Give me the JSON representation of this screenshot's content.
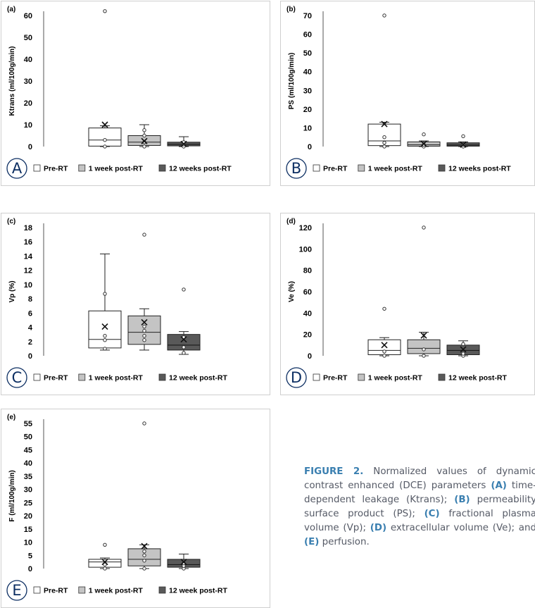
{
  "colors": {
    "pre": "#ffffff",
    "post1": "#c4c4c4",
    "post12": "#595959",
    "box_edge": "#222222",
    "caption_accent": "#3a7fb0",
    "caption_text": "#555a66"
  },
  "chart_data": [
    {
      "type": "box",
      "tag": "(a)",
      "panel_letter": "A",
      "ylabel": "Ktrans (ml/100g/min)",
      "ylim": [
        0,
        60
      ],
      "yticks": [
        0,
        10,
        20,
        30,
        40,
        50,
        60
      ],
      "legend": [
        "Pre-RT",
        "1 week post-RT",
        "12 weeks post-RT"
      ],
      "series": [
        {
          "name": "Pre-RT",
          "min": 0,
          "q1": 0.2,
          "median": 3.0,
          "q3": 8.5,
          "max": 9.5,
          "mean": 10,
          "points": [
            0,
            3,
            62
          ]
        },
        {
          "name": "1 week post-RT",
          "min": 0,
          "q1": 0.5,
          "median": 2.0,
          "q3": 5.0,
          "max": 10,
          "mean": 2.5,
          "points": [
            0,
            2,
            5,
            7.5
          ]
        },
        {
          "name": "12 weeks post-RT",
          "min": 0,
          "q1": 0.3,
          "median": 1.0,
          "q3": 2.0,
          "max": 4.5,
          "mean": 1.2,
          "points": [
            0,
            1,
            2
          ]
        }
      ]
    },
    {
      "type": "box",
      "tag": "(b)",
      "panel_letter": "B",
      "ylabel": "PS (ml/100g/min)",
      "ylim": [
        0,
        70
      ],
      "yticks": [
        0,
        10,
        20,
        30,
        40,
        50,
        60,
        70
      ],
      "legend": [
        "Pre-RT",
        "1 week post-RT",
        "12 weeks post-RT"
      ],
      "series": [
        {
          "name": "Pre-RT",
          "min": 0,
          "q1": 0.5,
          "median": 3.0,
          "q3": 12,
          "max": 13,
          "mean": 12,
          "points": [
            0,
            2,
            5,
            70
          ]
        },
        {
          "name": "1 week post-RT",
          "min": 0,
          "q1": 0.2,
          "median": 1.0,
          "q3": 2.5,
          "max": 3,
          "mean": 1.5,
          "points": [
            0,
            1,
            6.5
          ]
        },
        {
          "name": "12 weeks post-RT",
          "min": 0,
          "q1": 0.2,
          "median": 0.8,
          "q3": 2.0,
          "max": 2.5,
          "mean": 1.0,
          "points": [
            0,
            1,
            5.5
          ]
        }
      ]
    },
    {
      "type": "box",
      "tag": "(c)",
      "panel_letter": "C",
      "ylabel": "Vp (%)",
      "ylim": [
        0,
        18
      ],
      "yticks": [
        0,
        2,
        4,
        6,
        8,
        10,
        12,
        14,
        16,
        18
      ],
      "legend": [
        "Pre-RT",
        "1 week post-RT",
        "12 week post-RT"
      ],
      "series": [
        {
          "name": "Pre-RT",
          "min": 0.8,
          "q1": 1.1,
          "median": 2.3,
          "q3": 6.3,
          "max": 14.3,
          "mean": 4.1,
          "points": [
            1.0,
            2.2,
            2.8,
            8.7
          ]
        },
        {
          "name": "1 week post-RT",
          "min": 0.8,
          "q1": 1.6,
          "median": 3.3,
          "q3": 5.6,
          "max": 6.6,
          "mean": 4.7,
          "points": [
            2.2,
            2.8,
            3.5,
            4.1,
            17.0
          ]
        },
        {
          "name": "12 week post-RT",
          "min": 0.2,
          "q1": 0.8,
          "median": 1.5,
          "q3": 3.0,
          "max": 3.4,
          "mean": 2.3,
          "points": [
            0.4,
            1.2,
            2.6,
            9.3
          ]
        }
      ]
    },
    {
      "type": "box",
      "tag": "(d)",
      "panel_letter": "D",
      "ylabel": "Ve (%)",
      "ylim": [
        0,
        120
      ],
      "yticks": [
        0,
        20,
        40,
        60,
        80,
        100,
        120
      ],
      "legend": [
        "Pre-RT",
        "1 week post-RT",
        "12 week post-RT"
      ],
      "series": [
        {
          "name": "Pre-RT",
          "min": 0,
          "q1": 1,
          "median": 5,
          "q3": 15,
          "max": 17,
          "mean": 10,
          "points": [
            0,
            4,
            44
          ]
        },
        {
          "name": "1 week post-RT",
          "min": 0,
          "q1": 2,
          "median": 7,
          "q3": 15,
          "max": 22,
          "mean": 19,
          "points": [
            0,
            6,
            120
          ]
        },
        {
          "name": "12 week post-RT",
          "min": 0,
          "q1": 1,
          "median": 5,
          "q3": 10,
          "max": 14,
          "mean": 6,
          "points": [
            0,
            2,
            11
          ]
        }
      ]
    },
    {
      "type": "box",
      "tag": "(e)",
      "panel_letter": "E",
      "ylabel": "F (ml/100g/min)",
      "ylim": [
        0,
        55
      ],
      "yticks": [
        0,
        5,
        10,
        15,
        20,
        25,
        30,
        35,
        40,
        45,
        50,
        55
      ],
      "legend": [
        "Pre-RT",
        "1 week post-RT",
        "12 week post-RT"
      ],
      "series": [
        {
          "name": "Pre-RT",
          "min": 0,
          "q1": 0.5,
          "median": 2.5,
          "q3": 3.5,
          "max": 4,
          "mean": 2.5,
          "points": [
            0,
            1.5,
            9
          ]
        },
        {
          "name": "1 week post-RT",
          "min": 0,
          "q1": 1,
          "median": 3.5,
          "q3": 7.5,
          "max": 9,
          "mean": 8.5,
          "points": [
            0,
            3,
            5,
            6.5,
            55
          ]
        },
        {
          "name": "12 week post-RT",
          "min": 0,
          "q1": 0.5,
          "median": 1.5,
          "q3": 3.5,
          "max": 5.5,
          "mean": 2.5,
          "points": [
            0,
            1,
            2
          ]
        }
      ]
    }
  ],
  "caption": {
    "label": "FIGURE 2.",
    "segments": [
      {
        "text": " Normalized values of dynamic contrast enhanced (DCE) parameters ",
        "key": false
      },
      {
        "text": "(A)",
        "key": true
      },
      {
        "text": " time-dependent leakage (Ktrans); ",
        "key": false
      },
      {
        "text": "(B)",
        "key": true
      },
      {
        "text": " permeability surface product (PS); ",
        "key": false
      },
      {
        "text": "(C)",
        "key": true
      },
      {
        "text": " fractional plasma volume (Vp); ",
        "key": false
      },
      {
        "text": "(D)",
        "key": true
      },
      {
        "text": " extracellular volume (Ve); and ",
        "key": false
      },
      {
        "text": "(E)",
        "key": true
      },
      {
        "text": " perfusion.",
        "key": false
      }
    ]
  }
}
